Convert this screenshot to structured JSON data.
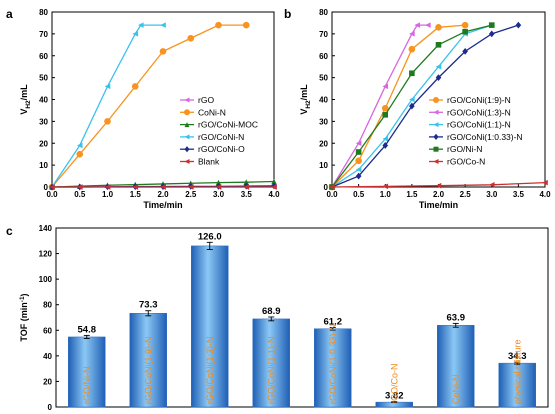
{
  "chart_data": [
    {
      "panel": "a",
      "type": "line",
      "xlabel": "Time/min",
      "ylabel": "V",
      "ylabel_sub": "H2",
      "ylabel_unit": "/mL",
      "xlim": [
        0,
        4.0
      ],
      "ylim": [
        0,
        80
      ],
      "xticks": [
        "0.0",
        "0.5",
        "1.0",
        "1.5",
        "2.0",
        "2.5",
        "3.0",
        "3.5",
        "4.0"
      ],
      "yticks": [
        "0",
        "10",
        "20",
        "30",
        "40",
        "50",
        "60",
        "70",
        "80"
      ],
      "legend_position": "center-right",
      "series": [
        {
          "name": "rGO",
          "color": "#d766e0",
          "marker": "triangle-left",
          "x": [
            0,
            0.5,
            1.0,
            1.5,
            2.0,
            2.5,
            3.0,
            3.5,
            4.0
          ],
          "y": [
            0,
            0,
            0,
            0,
            0,
            0,
            0,
            0,
            0
          ]
        },
        {
          "name": "CoNi-N",
          "color": "#f7931e",
          "marker": "circle",
          "x": [
            0,
            0.5,
            1.0,
            1.5,
            2.0,
            2.5,
            3.0,
            3.5
          ],
          "y": [
            0,
            15,
            30,
            46,
            62,
            68,
            74,
            74
          ]
        },
        {
          "name": "rGO/CoNi-MOC",
          "color": "#1f7a1f",
          "marker": "triangle-up",
          "x": [
            0,
            0.5,
            1.0,
            1.5,
            2.0,
            2.5,
            3.0,
            3.5,
            4.0
          ],
          "y": [
            0,
            0.4,
            0.8,
            1.1,
            1.4,
            1.7,
            2.0,
            2.2,
            2.5
          ]
        },
        {
          "name": "rGO/CoNi-N",
          "color": "#39c2ec",
          "marker": "triangle-left",
          "x": [
            0,
            0.5,
            1.0,
            1.5,
            1.6,
            2.0
          ],
          "y": [
            0,
            19,
            46,
            70,
            74,
            74
          ]
        },
        {
          "name": "rGO/CoNi-O",
          "color": "#1b2b8f",
          "marker": "diamond",
          "x": [
            0,
            0.5,
            1.0,
            1.5,
            2.0,
            2.5,
            3.0,
            3.5,
            4.0
          ],
          "y": [
            0,
            0,
            0.1,
            0.2,
            0.2,
            0.3,
            0.3,
            0.4,
            0.5
          ]
        },
        {
          "name": "Blank",
          "color": "#cc2f2f",
          "marker": "triangle-left",
          "x": [
            0,
            0.5,
            1.0,
            1.5,
            2.0,
            2.5,
            3.0,
            3.5,
            4.0
          ],
          "y": [
            0,
            0,
            0,
            0,
            0,
            0,
            0,
            0,
            0
          ]
        }
      ]
    },
    {
      "panel": "b",
      "type": "line",
      "xlabel": "Time/min",
      "ylabel": "V",
      "ylabel_sub": "H2",
      "ylabel_unit": "/mL",
      "xlim": [
        0,
        4.0
      ],
      "ylim": [
        0,
        80
      ],
      "xticks": [
        "0.0",
        "0.5",
        "1.0",
        "1.5",
        "2.0",
        "2.5",
        "3.0",
        "3.5",
        "4.0"
      ],
      "yticks": [
        "0",
        "10",
        "20",
        "30",
        "40",
        "50",
        "60",
        "70",
        "80"
      ],
      "legend_position": "center-right",
      "series": [
        {
          "name": "rGO/CoNi(1:9)-N",
          "color": "#f7931e",
          "marker": "circle",
          "x": [
            0,
            0.5,
            1.0,
            1.5,
            2.0,
            2.5
          ],
          "y": [
            0,
            12,
            36,
            63,
            73,
            74
          ]
        },
        {
          "name": "rGO/CoNi(1:3)-N",
          "color": "#d766e0",
          "marker": "triangle-left",
          "x": [
            0,
            0.5,
            1.0,
            1.5,
            1.6,
            1.8
          ],
          "y": [
            0,
            20,
            46,
            70,
            74,
            74
          ]
        },
        {
          "name": "rGO/CoNi(1:1)-N",
          "color": "#39c2ec",
          "marker": "triangle-left",
          "x": [
            0,
            0.5,
            1.0,
            1.5,
            2.0,
            2.5,
            3.0
          ],
          "y": [
            0,
            8,
            22,
            40,
            55,
            70,
            74
          ]
        },
        {
          "name": "rGO/CoNi(1:0.33)-N",
          "color": "#1b2b8f",
          "marker": "diamond",
          "x": [
            0,
            0.5,
            1.0,
            1.5,
            2.0,
            2.5,
            3.0,
            3.5
          ],
          "y": [
            0,
            5,
            19,
            37,
            50,
            62,
            70,
            74
          ]
        },
        {
          "name": "rGO/Ni-N",
          "color": "#1f7a1f",
          "marker": "square",
          "x": [
            0,
            0.5,
            1.0,
            1.5,
            2.0,
            2.5,
            3.0
          ],
          "y": [
            0,
            16,
            33,
            52,
            65,
            71,
            74
          ]
        },
        {
          "name": "rGO/Co-N",
          "color": "#cc2f2f",
          "marker": "triangle-left",
          "x": [
            0,
            1.0,
            2.0,
            3.0,
            4.0
          ],
          "y": [
            0,
            0.3,
            0.6,
            1.0,
            2.0
          ]
        }
      ]
    },
    {
      "panel": "c",
      "type": "bar",
      "ylabel": "TOF",
      "ylabel_unit": "(min",
      "ylabel_sup": "-1",
      "ylabel_close": ")",
      "ylim": [
        0,
        140
      ],
      "yticks": [
        "0",
        "20",
        "40",
        "60",
        "80",
        "100",
        "120",
        "140"
      ],
      "categories": [
        "rGO/Ni-N",
        "rGO/CoNi(1:9)-N",
        "rGO/CoNi(1:3)-N",
        "rGO/CoNi(1:1)-N",
        "rGO/CoNi(1:0.33)-N",
        "rGO/Co-N",
        "CoNi-N",
        "physical mixture"
      ],
      "values": [
        54.8,
        73.3,
        126.0,
        68.9,
        61.2,
        3.82,
        63.9,
        34.3
      ],
      "value_labels": [
        "54.8",
        "73.3",
        "126.0",
        "68.9",
        "61.2",
        "3.82",
        "63.9",
        "34.3"
      ],
      "errors": [
        1.2,
        2.0,
        2.8,
        1.5,
        1.0,
        0.3,
        1.5,
        0.8
      ],
      "bar_color": "#3f8fdc"
    }
  ]
}
